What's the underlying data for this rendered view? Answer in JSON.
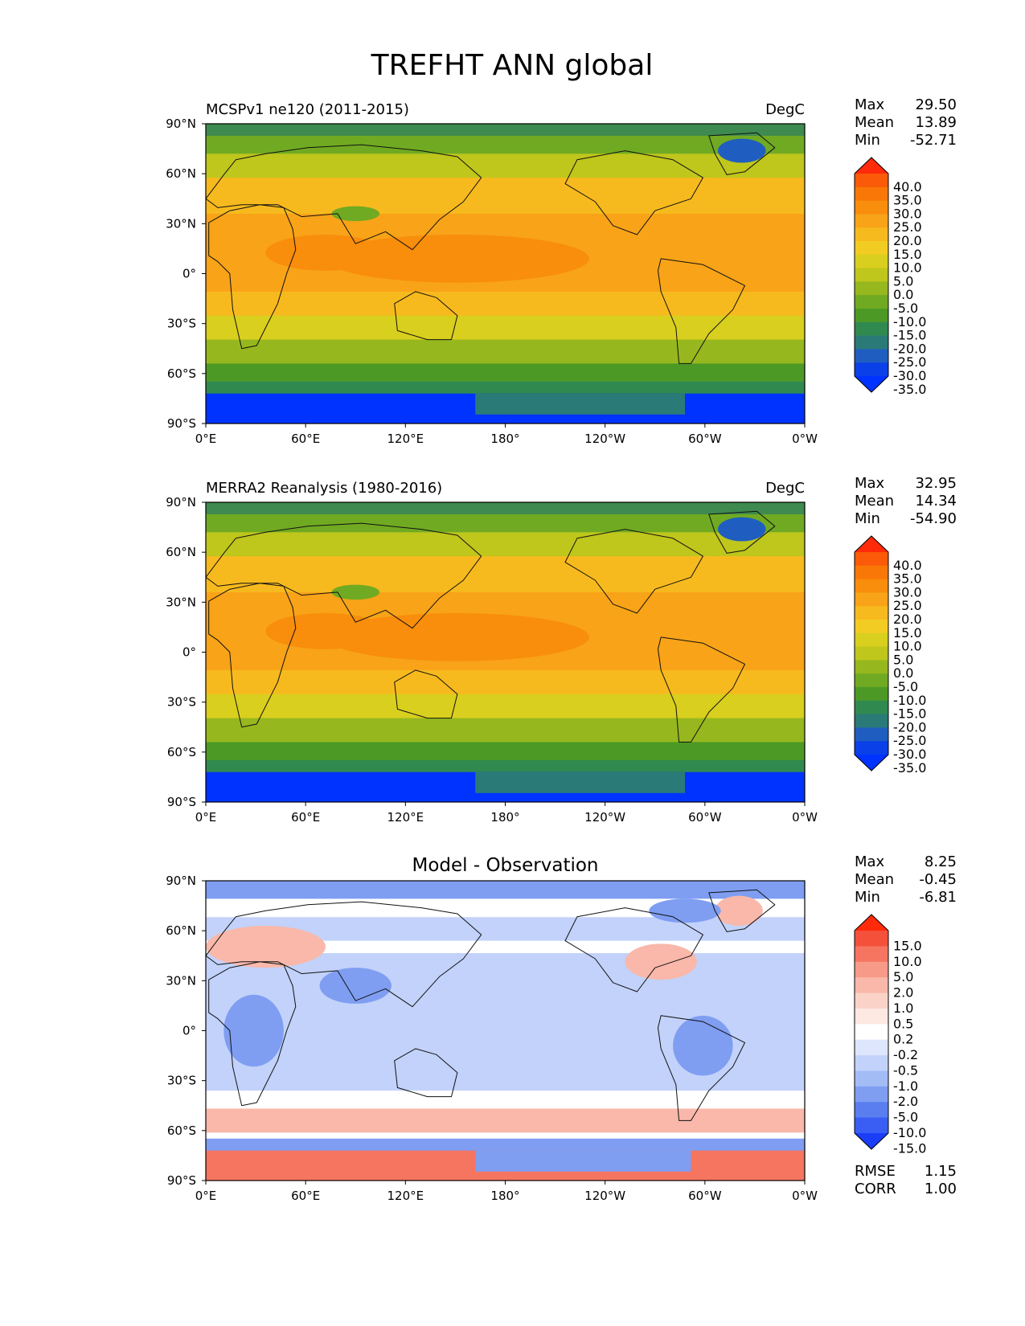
{
  "figure": {
    "title": "TREFHT ANN global"
  },
  "x_ticks": [
    "0°E",
    "60°E",
    "120°E",
    "180°",
    "120°W",
    "60°W",
    "0°W"
  ],
  "y_ticks": [
    "90°N",
    "60°N",
    "30°N",
    "0°",
    "30°S",
    "60°S",
    "90°S"
  ],
  "panels": [
    {
      "title_left": "MCSPv1 ne120 (2011-2015)",
      "title_center": "",
      "units": "DegC",
      "stats": [
        {
          "label": "Max",
          "value": "29.50"
        },
        {
          "label": "Mean",
          "value": "13.89"
        },
        {
          "label": "Min",
          "value": "-52.71"
        }
      ],
      "colorbar_labels": [
        "40.0",
        "35.0",
        "30.0",
        "25.0",
        "20.0",
        "15.0",
        "10.0",
        "5.0",
        "0.0",
        "-5.0",
        "-10.0",
        "-15.0",
        "-20.0",
        "-25.0",
        "-30.0",
        "-35.0"
      ],
      "colorbar_colors": [
        "#ff2a0a",
        "#fb5a08",
        "#f97706",
        "#f98d0c",
        "#f8a318",
        "#f7ba1e",
        "#f2cc22",
        "#d9cf1e",
        "#bfc61c",
        "#96b81e",
        "#70aa22",
        "#4c9a25",
        "#308a50",
        "#2a7a78",
        "#1f5ec0",
        "#0a40e8",
        "#0033ff"
      ],
      "footer": []
    },
    {
      "title_left": "MERRA2 Reanalysis (1980-2016)",
      "title_center": "",
      "units": "DegC",
      "stats": [
        {
          "label": "Max",
          "value": "32.95"
        },
        {
          "label": "Mean",
          "value": "14.34"
        },
        {
          "label": "Min",
          "value": "-54.90"
        }
      ],
      "colorbar_labels": [
        "40.0",
        "35.0",
        "30.0",
        "25.0",
        "20.0",
        "15.0",
        "10.0",
        "5.0",
        "0.0",
        "-5.0",
        "-10.0",
        "-15.0",
        "-20.0",
        "-25.0",
        "-30.0",
        "-35.0"
      ],
      "colorbar_colors": [
        "#ff2a0a",
        "#fb5a08",
        "#f97706",
        "#f98d0c",
        "#f8a318",
        "#f7ba1e",
        "#f2cc22",
        "#d9cf1e",
        "#bfc61c",
        "#96b81e",
        "#70aa22",
        "#4c9a25",
        "#308a50",
        "#2a7a78",
        "#1f5ec0",
        "#0a40e8",
        "#0033ff"
      ],
      "footer": []
    },
    {
      "title_left": "",
      "title_center": "Model - Observation",
      "units": "",
      "stats": [
        {
          "label": "Max",
          "value": "8.25"
        },
        {
          "label": "Mean",
          "value": "-0.45"
        },
        {
          "label": "Min",
          "value": "-6.81"
        }
      ],
      "colorbar_labels": [
        "15.0",
        "10.0",
        "5.0",
        "2.0",
        "1.0",
        "0.5",
        "0.2",
        "-0.2",
        "-0.5",
        "-1.0",
        "-2.0",
        "-5.0",
        "-10.0",
        "-15.0"
      ],
      "colorbar_colors": [
        "#ff2a0a",
        "#f5503a",
        "#f57560",
        "#f79a88",
        "#f9b8aa",
        "#fbd2c8",
        "#fde8e2",
        "#ffffff",
        "#dde6fc",
        "#c2d2fa",
        "#a4bcf6",
        "#7f9ef2",
        "#5a7ef0",
        "#3a5ef4",
        "#1a3ef8"
      ],
      "footer": [
        {
          "label": "RMSE",
          "value": "1.15"
        },
        {
          "label": "CORR",
          "value": "1.00"
        }
      ]
    }
  ],
  "field_colors": {
    "antarctic_deep": "#0033ff",
    "antarctic_edge": "#2a7a78",
    "ice_coast": "#308a50",
    "southern_cold": "#4c9a25",
    "southern_mid": "#96b81e",
    "southern_warm": "#d9cf1e",
    "subtropic": "#f7ba1e",
    "tropic": "#f8a318",
    "warm_pool": "#f98d0c",
    "northern_mid": "#bfc61c",
    "northern_cold": "#70aa22",
    "arctic": "#3e8a50",
    "greenland": "#1f5ec0",
    "diff_neutral": "#ffffff",
    "diff_cool": "#c2d2fa",
    "diff_cold": "#7f9ef2",
    "diff_warm": "#f9b8aa",
    "diff_hot": "#f57560"
  }
}
